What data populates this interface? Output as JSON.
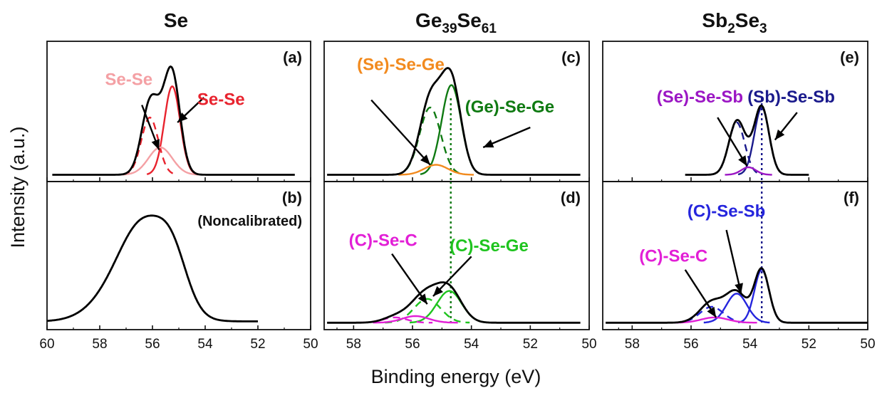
{
  "figure": {
    "xlabel": "Binding energy (eV)",
    "ylabel": "Intensity (a.u.)"
  },
  "columns": [
    {
      "id": "se",
      "title_main": "Se",
      "title_parts": []
    },
    {
      "id": "gese",
      "title_main": "",
      "title_parts": [
        {
          "t": "Ge"
        },
        {
          "t": "39",
          "sub": true
        },
        {
          "t": "Se"
        },
        {
          "t": "61",
          "sub": true
        }
      ]
    },
    {
      "id": "sbse",
      "title_main": "",
      "title_parts": [
        {
          "t": "Sb"
        },
        {
          "t": "2",
          "sub": true
        },
        {
          "t": "Se"
        },
        {
          "t": "3",
          "sub": true
        }
      ]
    }
  ],
  "panels": [
    {
      "id": "a",
      "label": "(a)",
      "note": "",
      "xlim": [
        60,
        50
      ],
      "xticks": [
        60,
        58,
        56,
        54,
        52,
        50
      ],
      "annotations": [
        {
          "text": "Se-Se",
          "color": "#f4a0a4",
          "x": 56.9,
          "y": 0.74,
          "arrow_from": [
            56.4,
            0.58
          ],
          "arrow_to": [
            55.75,
            0.22
          ]
        },
        {
          "text": "Se-Se",
          "color": "#e8232e",
          "x": 53.4,
          "y": 0.58,
          "arrow_from": [
            54.05,
            0.64
          ],
          "arrow_to": [
            55.05,
            0.44
          ]
        }
      ]
    },
    {
      "id": "b",
      "label": "(b)",
      "note": "(Noncalibrated)",
      "xlim": [
        60,
        50
      ],
      "xticks": [
        60,
        58,
        56,
        54,
        52,
        50
      ],
      "annotations": []
    },
    {
      "id": "c",
      "label": "(c)",
      "note": "",
      "xlim": [
        59,
        50
      ],
      "xticks": [
        58,
        56,
        54,
        52,
        50
      ],
      "annotations": [
        {
          "text": "(Se)-Se-Ge",
          "color": "#f28a1e",
          "x": 56.4,
          "y": 0.86,
          "arrow_from": [
            57.4,
            0.62
          ],
          "arrow_to": [
            55.4,
            0.1
          ]
        },
        {
          "text": "(Ge)-Se-Ge",
          "color": "#0f7a12",
          "x": 52.7,
          "y": 0.52,
          "arrow_from": [
            52.0,
            0.4
          ],
          "arrow_to": [
            53.6,
            0.24
          ]
        }
      ]
    },
    {
      "id": "d",
      "label": "(d)",
      "note": "",
      "xlim": [
        59,
        50
      ],
      "xticks": [
        58,
        56,
        54,
        52,
        50
      ],
      "annotations": [
        {
          "text": "(C)-Se-C",
          "color": "#e21fd6",
          "x": 57.0,
          "y": 0.6,
          "arrow_from": [
            56.7,
            0.54
          ],
          "arrow_to": [
            55.5,
            0.16
          ]
        },
        {
          "text": "(C)-Se-Ge",
          "color": "#1fc41f",
          "x": 53.4,
          "y": 0.56,
          "arrow_from": [
            54.0,
            0.52
          ],
          "arrow_to": [
            55.3,
            0.22
          ]
        }
      ]
    },
    {
      "id": "e",
      "label": "(e)",
      "note": "",
      "xlim": [
        59,
        50
      ],
      "xticks": [
        58,
        56,
        54,
        52,
        50
      ],
      "annotations": [
        {
          "text": "(Se)-Se-Sb",
          "color": "#9b16c4",
          "x": 55.7,
          "y": 0.6,
          "arrow_from": [
            55.1,
            0.48
          ],
          "arrow_to": [
            54.1,
            0.09
          ]
        },
        {
          "text": "(Sb)-Se-Sb",
          "color": "#1a1a8c",
          "x": 52.6,
          "y": 0.6,
          "arrow_from": [
            52.4,
            0.52
          ],
          "arrow_to": [
            53.15,
            0.3
          ]
        }
      ]
    },
    {
      "id": "f",
      "label": "(f)",
      "note": "",
      "xlim": [
        59,
        50
      ],
      "xticks": [
        58,
        56,
        54,
        52,
        50
      ],
      "annotations": [
        {
          "text": "(C)-Se-Sb",
          "color": "#2525dd",
          "x": 54.8,
          "y": 0.82,
          "arrow_from": [
            54.8,
            0.72
          ],
          "arrow_to": [
            54.3,
            0.24
          ]
        },
        {
          "text": "(C)-Se-C",
          "color": "#e21fd6",
          "x": 56.6,
          "y": 0.48,
          "arrow_from": [
            56.2,
            0.42
          ],
          "arrow_to": [
            55.15,
            0.06
          ]
        }
      ]
    }
  ],
  "chart_data": [
    {
      "panel": "a",
      "type": "line",
      "title": "Se",
      "xlim": [
        60,
        50
      ],
      "ylabel": "Intensity (a.u.)",
      "baseline": 0.02,
      "xrange": [
        59.8,
        50.6
      ],
      "peaks": [
        {
          "name": "Se-Se",
          "color": "#e8232e",
          "style": "solid",
          "center": 55.25,
          "height": 0.71,
          "width": 0.3
        },
        {
          "name": "Se-Se",
          "color": "#e8232e",
          "style": "dashed",
          "center": 56.1,
          "height": 0.46,
          "width": 0.32
        },
        {
          "name": "Se-Se",
          "color": "#f4a0a4",
          "style": "solid",
          "center": 55.7,
          "height": 0.22,
          "width": 0.45
        }
      ]
    },
    {
      "panel": "b",
      "type": "line",
      "title": "Se",
      "xlim": [
        60,
        50
      ],
      "note": "(Noncalibrated)",
      "baseline": 0.03,
      "xrange": [
        60,
        52
      ],
      "peaks": [
        {
          "name": "envelope",
          "color": "#000000",
          "style": "solid",
          "center": 56.3,
          "height": 0.72,
          "width": 0.95
        },
        {
          "name": "envelope",
          "color": "#000000",
          "style": "solid",
          "center": 55.2,
          "height": 0.28,
          "width": 0.55
        },
        {
          "name": "envelope",
          "color": "#000000",
          "style": "solid",
          "center": 57.7,
          "height": 0.1,
          "width": 0.9
        }
      ]
    },
    {
      "panel": "c",
      "type": "line",
      "title": "Ge39Se61",
      "xlim": [
        59,
        50
      ],
      "ref_line": 54.7,
      "baseline": 0.02,
      "xrange": [
        58.9,
        50.3
      ],
      "peaks": [
        {
          "name": "(Ge)-Se-Ge",
          "color": "#0f7a12",
          "style": "solid",
          "center": 54.68,
          "height": 0.72,
          "width": 0.33
        },
        {
          "name": "(Ge)-Se-Ge",
          "color": "#0f7a12",
          "style": "dashed",
          "center": 55.4,
          "height": 0.54,
          "width": 0.36
        },
        {
          "name": "(Se)-Se-Ge",
          "color": "#f28a1e",
          "style": "solid",
          "center": 55.2,
          "height": 0.08,
          "width": 0.4
        }
      ]
    },
    {
      "panel": "d",
      "type": "line",
      "title": "Ge39Se61",
      "xlim": [
        59,
        50
      ],
      "ref_line": 54.7,
      "baseline": 0.02,
      "xrange": [
        58.9,
        50.3
      ],
      "peaks": [
        {
          "name": "(C)-Se-Ge",
          "color": "#1fc41f",
          "style": "solid",
          "center": 54.75,
          "height": 0.24,
          "width": 0.42
        },
        {
          "name": "(C)-Se-Ge",
          "color": "#1fc41f",
          "style": "dashed",
          "center": 55.5,
          "height": 0.18,
          "width": 0.45
        },
        {
          "name": "(C)-Se-C",
          "color": "#e21fd6",
          "style": "solid",
          "center": 55.9,
          "height": 0.05,
          "width": 0.45
        },
        {
          "name": "(C)-Se-C",
          "color": "#e21fd6",
          "style": "dashed",
          "center": 56.6,
          "height": 0.04,
          "width": 0.4
        }
      ]
    },
    {
      "panel": "e",
      "type": "line",
      "title": "Sb2Se3",
      "xlim": [
        59,
        50
      ],
      "ref_line": 53.6,
      "baseline": 0.02,
      "xrange": [
        56.2,
        52.0
      ],
      "peaks": [
        {
          "name": "(Sb)-Se-Sb",
          "color": "#1a1a8c",
          "style": "solid",
          "center": 53.6,
          "height": 0.54,
          "width": 0.25
        },
        {
          "name": "(Sb)-Se-Sb",
          "color": "#1a1a8c",
          "style": "dashed",
          "center": 54.45,
          "height": 0.42,
          "width": 0.27
        },
        {
          "name": "(Se)-Se-Sb",
          "color": "#9b16c4",
          "style": "solid",
          "center": 54.05,
          "height": 0.06,
          "width": 0.25
        }
      ]
    },
    {
      "panel": "f",
      "type": "line",
      "title": "Sb2Se3",
      "xlim": [
        59,
        50
      ],
      "ref_line": 53.6,
      "baseline": 0.02,
      "xrange": [
        58.9,
        50.0
      ],
      "peaks": [
        {
          "name": "(C)-Se-Sb",
          "color": "#2525dd",
          "style": "solid",
          "center": 53.6,
          "height": 0.4,
          "width": 0.25
        },
        {
          "name": "(C)-Se-Sb",
          "color": "#2525dd",
          "style": "solid",
          "center": 54.45,
          "height": 0.22,
          "width": 0.35
        },
        {
          "name": "(C)-Se-Sb",
          "color": "#2525dd",
          "style": "dashed",
          "center": 55.3,
          "height": 0.12,
          "width": 0.4
        },
        {
          "name": "(C)-Se-C",
          "color": "#e21fd6",
          "style": "solid",
          "center": 55.2,
          "height": 0.04,
          "width": 0.45
        }
      ]
    }
  ]
}
